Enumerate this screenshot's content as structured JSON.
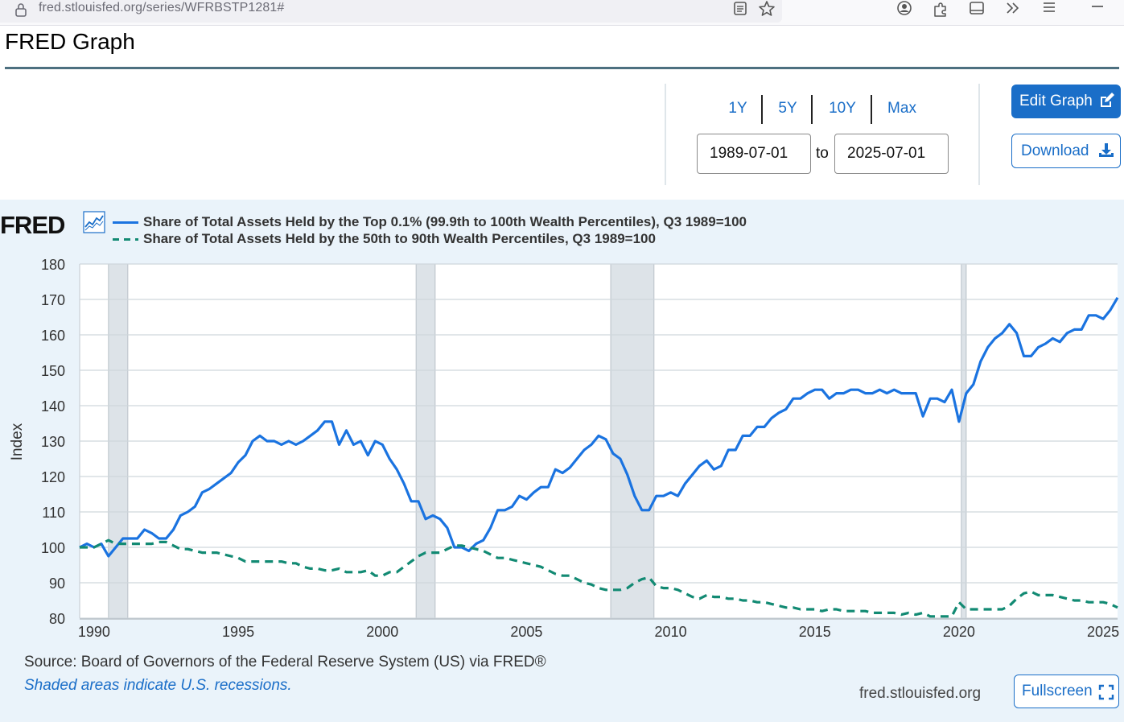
{
  "browser": {
    "url_host": "fred.stlouisfed.org",
    "url_path": "/series/WFRBSTP1281#"
  },
  "page": {
    "title": "FRED Graph"
  },
  "controls": {
    "ranges": [
      "1Y",
      "5Y",
      "10Y",
      "Max"
    ],
    "start_date": "1989-07-01",
    "to_label": "to",
    "end_date": "2025-07-01",
    "edit_label": "Edit Graph",
    "download_label": "Download"
  },
  "graph": {
    "logo_text": "FRED",
    "source": "Source: Board of Governors of the Federal Reserve System (US) via FRED®",
    "recession_note": "Shaded areas indicate U.S. recessions.",
    "site": "fred.stlouisfed.org",
    "fullscreen_label": "Fullscreen"
  },
  "colors": {
    "series_top": "#1a73e0",
    "series_mid": "#128a73",
    "recession": "#dde3e8",
    "accent": "#1a6ec8"
  },
  "chart_data": {
    "type": "line",
    "title": "",
    "xlabel": "",
    "ylabel": "Index",
    "xlim": [
      1989.5,
      2025.5
    ],
    "ylim": [
      80,
      180
    ],
    "yticks": [
      80,
      90,
      100,
      110,
      120,
      130,
      140,
      150,
      160,
      170,
      180
    ],
    "xticks": [
      1990,
      1995,
      2000,
      2005,
      2010,
      2015,
      2020,
      2025
    ],
    "grid": true,
    "legend_position": "top-left",
    "recessions": [
      [
        1990.5,
        1991.17
      ],
      [
        2001.17,
        2001.83
      ],
      [
        2007.92,
        2009.42
      ],
      [
        2020.08,
        2020.25
      ]
    ],
    "series": [
      {
        "name": "Share of Total Assets Held by the Top 0.1% (99.9th to 100th Wealth Percentiles), Q3 1989=100",
        "style": "solid",
        "points": [
          [
            1989.5,
            100
          ],
          [
            1989.75,
            101
          ],
          [
            1990,
            100
          ],
          [
            1990.25,
            101
          ],
          [
            1990.5,
            97.5
          ],
          [
            1990.75,
            100
          ],
          [
            1991,
            102.5
          ],
          [
            1991.25,
            102.5
          ],
          [
            1991.5,
            102.5
          ],
          [
            1991.75,
            105
          ],
          [
            1992,
            104
          ],
          [
            1992.25,
            102.5
          ],
          [
            1992.5,
            102.5
          ],
          [
            1992.75,
            105
          ],
          [
            1993,
            109
          ],
          [
            1993.25,
            110
          ],
          [
            1993.5,
            111.5
          ],
          [
            1993.75,
            115.5
          ],
          [
            1994,
            116.5
          ],
          [
            1994.25,
            118
          ],
          [
            1994.5,
            119.5
          ],
          [
            1994.75,
            121
          ],
          [
            1995,
            124
          ],
          [
            1995.25,
            126
          ],
          [
            1995.5,
            130
          ],
          [
            1995.75,
            131.5
          ],
          [
            1996,
            130
          ],
          [
            1996.25,
            130
          ],
          [
            1996.5,
            129
          ],
          [
            1996.75,
            130
          ],
          [
            1997,
            129
          ],
          [
            1997.25,
            130
          ],
          [
            1997.5,
            131.5
          ],
          [
            1997.75,
            133
          ],
          [
            1998,
            135.5
          ],
          [
            1998.25,
            135.5
          ],
          [
            1998.5,
            129
          ],
          [
            1998.75,
            133
          ],
          [
            1999,
            129
          ],
          [
            1999.25,
            130
          ],
          [
            1999.5,
            126
          ],
          [
            1999.75,
            130
          ],
          [
            2000,
            129
          ],
          [
            2000.25,
            125
          ],
          [
            2000.5,
            122
          ],
          [
            2000.75,
            118
          ],
          [
            2001,
            113
          ],
          [
            2001.25,
            113
          ],
          [
            2001.5,
            108
          ],
          [
            2001.75,
            109
          ],
          [
            2002,
            108
          ],
          [
            2002.25,
            105.5
          ],
          [
            2002.5,
            100
          ],
          [
            2002.75,
            100
          ],
          [
            2003,
            99
          ],
          [
            2003.25,
            101
          ],
          [
            2003.5,
            102
          ],
          [
            2003.75,
            105.5
          ],
          [
            2004,
            110.5
          ],
          [
            2004.25,
            110.5
          ],
          [
            2004.5,
            111.5
          ],
          [
            2004.75,
            114.5
          ],
          [
            2005,
            113.5
          ],
          [
            2005.25,
            115.5
          ],
          [
            2005.5,
            117
          ],
          [
            2005.75,
            117
          ],
          [
            2006,
            122
          ],
          [
            2006.25,
            121
          ],
          [
            2006.5,
            122.5
          ],
          [
            2006.75,
            125
          ],
          [
            2007,
            127.5
          ],
          [
            2007.25,
            129
          ],
          [
            2007.5,
            131.5
          ],
          [
            2007.75,
            130.5
          ],
          [
            2008,
            126.5
          ],
          [
            2008.25,
            125
          ],
          [
            2008.5,
            120.5
          ],
          [
            2008.75,
            114.5
          ],
          [
            2009,
            110.5
          ],
          [
            2009.25,
            110.5
          ],
          [
            2009.5,
            114.5
          ],
          [
            2009.75,
            114.5
          ],
          [
            2010,
            115.5
          ],
          [
            2010.25,
            114.5
          ],
          [
            2010.5,
            118
          ],
          [
            2010.75,
            120.5
          ],
          [
            2011,
            123
          ],
          [
            2011.25,
            124.5
          ],
          [
            2011.5,
            122
          ],
          [
            2011.75,
            123
          ],
          [
            2012,
            127.5
          ],
          [
            2012.25,
            127.5
          ],
          [
            2012.5,
            131.5
          ],
          [
            2012.75,
            131.5
          ],
          [
            2013,
            134
          ],
          [
            2013.25,
            134
          ],
          [
            2013.5,
            136.5
          ],
          [
            2013.75,
            138
          ],
          [
            2014,
            139
          ],
          [
            2014.25,
            142
          ],
          [
            2014.5,
            142
          ],
          [
            2014.75,
            143.5
          ],
          [
            2015,
            144.5
          ],
          [
            2015.25,
            144.5
          ],
          [
            2015.5,
            142
          ],
          [
            2015.75,
            143.5
          ],
          [
            2016,
            143.5
          ],
          [
            2016.25,
            144.5
          ],
          [
            2016.5,
            144.5
          ],
          [
            2016.75,
            143.5
          ],
          [
            2017,
            143.5
          ],
          [
            2017.25,
            144.5
          ],
          [
            2017.5,
            143.5
          ],
          [
            2017.75,
            144.5
          ],
          [
            2018,
            143.5
          ],
          [
            2018.25,
            143.5
          ],
          [
            2018.5,
            143.5
          ],
          [
            2018.75,
            137
          ],
          [
            2019,
            142
          ],
          [
            2019.25,
            142
          ],
          [
            2019.5,
            141
          ],
          [
            2019.75,
            144.5
          ],
          [
            2020,
            135.5
          ],
          [
            2020.25,
            143.5
          ],
          [
            2020.5,
            146
          ],
          [
            2020.75,
            152.5
          ],
          [
            2021,
            156.5
          ],
          [
            2021.25,
            159
          ],
          [
            2021.5,
            160.5
          ],
          [
            2021.75,
            163
          ],
          [
            2022,
            160.5
          ],
          [
            2022.25,
            154
          ],
          [
            2022.5,
            154
          ],
          [
            2022.75,
            156.5
          ],
          [
            2023,
            157.5
          ],
          [
            2023.25,
            159
          ],
          [
            2023.5,
            158
          ],
          [
            2023.75,
            160.5
          ],
          [
            2024,
            161.5
          ],
          [
            2024.25,
            161.5
          ],
          [
            2024.5,
            165.5
          ],
          [
            2024.75,
            165.5
          ],
          [
            2025,
            164.5
          ],
          [
            2025.25,
            167
          ],
          [
            2025.5,
            170.5
          ]
        ]
      },
      {
        "name": "Share of Total Assets Held by the 50th to 90th Wealth Percentiles, Q3 1989=100",
        "style": "dashed",
        "points": [
          [
            1989.5,
            100
          ],
          [
            1989.75,
            100
          ],
          [
            1990,
            100
          ],
          [
            1990.25,
            101
          ],
          [
            1990.5,
            102
          ],
          [
            1990.75,
            101
          ],
          [
            1991,
            101
          ],
          [
            1991.25,
            101
          ],
          [
            1991.5,
            101
          ],
          [
            1991.75,
            101
          ],
          [
            1992,
            101
          ],
          [
            1992.25,
            101.5
          ],
          [
            1992.5,
            101.5
          ],
          [
            1992.75,
            100.5
          ],
          [
            1993,
            99.5
          ],
          [
            1993.25,
            99.5
          ],
          [
            1993.5,
            99
          ],
          [
            1993.75,
            98.5
          ],
          [
            1994,
            98.5
          ],
          [
            1994.25,
            98.5
          ],
          [
            1994.5,
            98
          ],
          [
            1994.75,
            97.5
          ],
          [
            1995,
            97
          ],
          [
            1995.25,
            96
          ],
          [
            1995.5,
            96
          ],
          [
            1995.75,
            96
          ],
          [
            1996,
            96
          ],
          [
            1996.25,
            96
          ],
          [
            1996.5,
            96
          ],
          [
            1996.75,
            95.5
          ],
          [
            1997,
            95.5
          ],
          [
            1997.25,
            94.5
          ],
          [
            1997.5,
            94
          ],
          [
            1997.75,
            94
          ],
          [
            1998,
            93.5
          ],
          [
            1998.25,
            93.5
          ],
          [
            1998.5,
            94
          ],
          [
            1998.75,
            93
          ],
          [
            1999,
            93
          ],
          [
            1999.25,
            93
          ],
          [
            1999.5,
            93.5
          ],
          [
            1999.75,
            92
          ],
          [
            2000,
            92
          ],
          [
            2000.25,
            93
          ],
          [
            2000.5,
            93
          ],
          [
            2000.75,
            94.5
          ],
          [
            2001,
            96
          ],
          [
            2001.25,
            97.5
          ],
          [
            2001.5,
            98.5
          ],
          [
            2001.75,
            98.5
          ],
          [
            2002,
            98.5
          ],
          [
            2002.25,
            99.5
          ],
          [
            2002.5,
            100.5
          ],
          [
            2002.75,
            100.5
          ],
          [
            2003,
            100
          ],
          [
            2003.25,
            99.5
          ],
          [
            2003.5,
            99
          ],
          [
            2003.75,
            98
          ],
          [
            2004,
            97
          ],
          [
            2004.25,
            97
          ],
          [
            2004.5,
            96.5
          ],
          [
            2004.75,
            96
          ],
          [
            2005,
            95.5
          ],
          [
            2005.25,
            95
          ],
          [
            2005.5,
            94.5
          ],
          [
            2005.75,
            93.5
          ],
          [
            2006,
            92.5
          ],
          [
            2006.25,
            92
          ],
          [
            2006.5,
            92
          ],
          [
            2006.75,
            91
          ],
          [
            2007,
            90
          ],
          [
            2007.25,
            89.5
          ],
          [
            2007.5,
            88.5
          ],
          [
            2007.75,
            88
          ],
          [
            2008,
            88
          ],
          [
            2008.25,
            88
          ],
          [
            2008.5,
            88.5
          ],
          [
            2008.75,
            90
          ],
          [
            2009,
            91
          ],
          [
            2009.25,
            91.5
          ],
          [
            2009.5,
            89
          ],
          [
            2009.75,
            88.5
          ],
          [
            2010,
            88.5
          ],
          [
            2010.25,
            88
          ],
          [
            2010.5,
            87
          ],
          [
            2010.75,
            86
          ],
          [
            2011,
            85.5
          ],
          [
            2011.25,
            86.5
          ],
          [
            2011.5,
            86
          ],
          [
            2011.75,
            86
          ],
          [
            2012,
            85.5
          ],
          [
            2012.25,
            85.5
          ],
          [
            2012.5,
            85
          ],
          [
            2012.75,
            85
          ],
          [
            2013,
            84.5
          ],
          [
            2013.25,
            84.5
          ],
          [
            2013.5,
            84
          ],
          [
            2013.75,
            83.5
          ],
          [
            2014,
            83
          ],
          [
            2014.25,
            83
          ],
          [
            2014.5,
            82.5
          ],
          [
            2014.75,
            82.5
          ],
          [
            2015,
            82.5
          ],
          [
            2015.25,
            82
          ],
          [
            2015.5,
            82.5
          ],
          [
            2015.75,
            82.5
          ],
          [
            2016,
            82
          ],
          [
            2016.25,
            82
          ],
          [
            2016.5,
            82
          ],
          [
            2016.75,
            82
          ],
          [
            2017,
            81.5
          ],
          [
            2017.25,
            81.5
          ],
          [
            2017.5,
            81.5
          ],
          [
            2017.75,
            81.5
          ],
          [
            2018,
            81
          ],
          [
            2018.25,
            81.5
          ],
          [
            2018.5,
            81
          ],
          [
            2018.75,
            81.5
          ],
          [
            2019,
            80.5
          ],
          [
            2019.25,
            80.5
          ],
          [
            2019.5,
            80.5
          ],
          [
            2019.75,
            80.5
          ],
          [
            2020,
            84.5
          ],
          [
            2020.25,
            82.5
          ],
          [
            2020.5,
            82.5
          ],
          [
            2020.75,
            82.5
          ],
          [
            2021,
            82.5
          ],
          [
            2021.25,
            82.5
          ],
          [
            2021.5,
            82.5
          ],
          [
            2021.75,
            83.5
          ],
          [
            2022,
            85.5
          ],
          [
            2022.25,
            87
          ],
          [
            2022.5,
            87.5
          ],
          [
            2022.75,
            86.5
          ],
          [
            2023,
            86.5
          ],
          [
            2023.25,
            86.5
          ],
          [
            2023.5,
            86
          ],
          [
            2023.75,
            85.5
          ],
          [
            2024,
            85
          ],
          [
            2024.25,
            85
          ],
          [
            2024.5,
            84.5
          ],
          [
            2024.75,
            84.5
          ],
          [
            2025,
            84.5
          ],
          [
            2025.25,
            84
          ],
          [
            2025.5,
            83
          ]
        ]
      }
    ]
  }
}
